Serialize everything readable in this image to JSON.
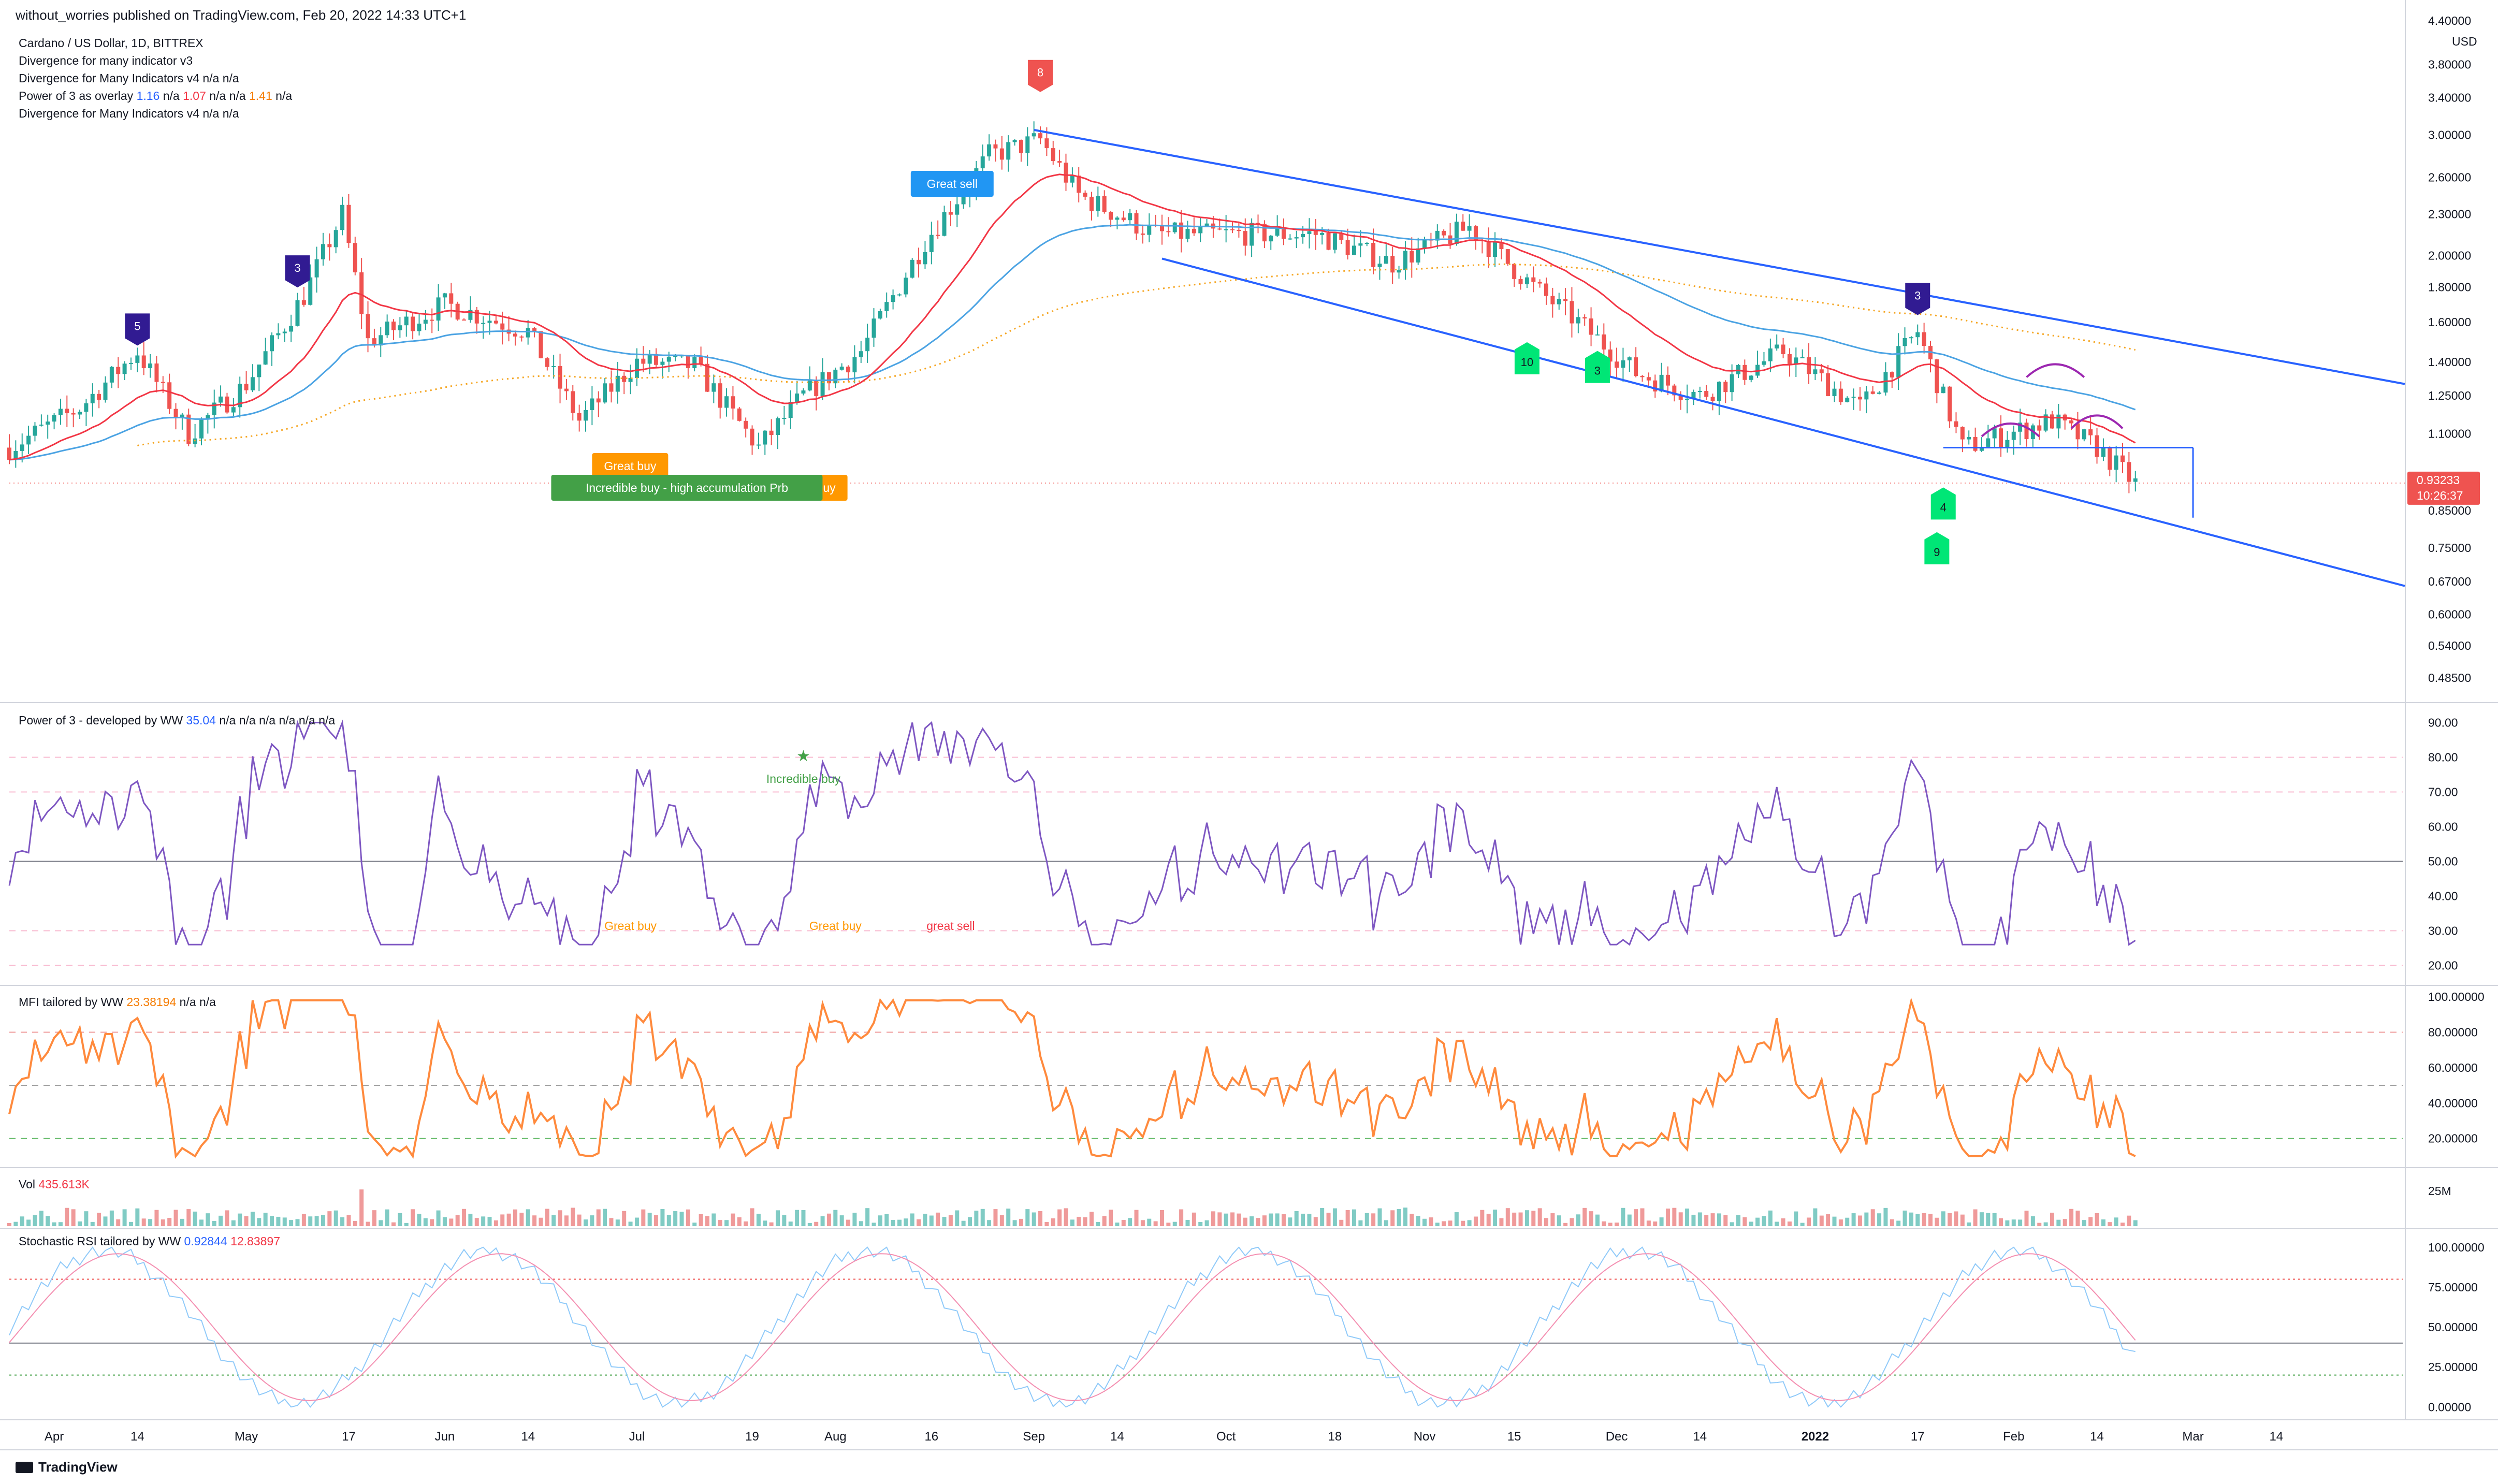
{
  "header": {
    "published": "without_worries published on TradingView.com, Feb 20, 2022 14:33 UTC+1"
  },
  "legends": {
    "main": [
      {
        "text": "Cardano / US Dollar, 1D, BITTREX"
      },
      {
        "text": "Divergence for many indicator v3"
      },
      {
        "text": "Divergence for Many Indicators v4  n/a  n/a"
      },
      {
        "text": "Power of 3 as overlay",
        "v1": "1.16",
        "na1": "n/a",
        "v2": "1.07",
        "na2": "n/a",
        "na3": "n/a",
        "v3": "1.41",
        "na4": "n/a"
      },
      {
        "text": "Divergence for Many Indicators v4  n/a  n/a"
      }
    ],
    "power3": {
      "text": "Power of 3 - developed by WW",
      "value": "35.04",
      "rest": "n/a  n/a  n/a  n/a  n/a  n/a"
    },
    "mfi": {
      "text": "MFI tailored by WW",
      "value": "23.38194",
      "rest": "n/a  n/a"
    },
    "vol": {
      "text": "Vol",
      "value": "435.613K"
    },
    "stoch": {
      "text": "Stochastic RSI tailored by WW",
      "v1": "0.92844",
      "v2": "12.83897"
    }
  },
  "colors": {
    "up": "#26a69a",
    "down": "#ef5350",
    "ema_fast": "#f23645",
    "ema_green": "#2e9e3e",
    "ema_slow": "#4ba3e3",
    "ma_dotted": "#f5a623",
    "channel": "#2962ff"
  },
  "price_axis": {
    "currency": "USD",
    "labels": [
      "4.40000",
      "3.80000",
      "3.40000",
      "3.00000",
      "2.60000",
      "2.30000",
      "2.00000",
      "1.80000",
      "1.60000",
      "1.40000",
      "1.25000",
      "1.10000",
      "0.85000",
      "0.75000",
      "0.67000",
      "0.60000",
      "0.54000",
      "0.48500"
    ],
    "last_price": "0.93233",
    "countdown": "10:26:37"
  },
  "x_axis": {
    "labels": [
      "Apr",
      "14",
      "May",
      "17",
      "Jun",
      "14",
      "Jul",
      "19",
      "Aug",
      "16",
      "Sep",
      "14",
      "Oct",
      "18",
      "Nov",
      "15",
      "Dec",
      "14",
      "2022",
      "17",
      "Feb",
      "14",
      "Mar",
      "14"
    ]
  },
  "power3_axis": [
    "90.00",
    "80.00",
    "70.00",
    "60.00",
    "50.00",
    "40.00",
    "30.00",
    "20.00"
  ],
  "mfi_axis": [
    "100.00000",
    "80.00000",
    "60.00000",
    "40.00000",
    "20.00000"
  ],
  "vol_axis": [
    "25M"
  ],
  "stoch_axis": [
    "100.00000",
    "75.00000",
    "50.00000",
    "25.00000",
    "0.00000"
  ],
  "markers": [
    {
      "text": "5"
    },
    {
      "text": "3"
    },
    {
      "text": "8"
    },
    {
      "text": "3"
    },
    {
      "text": "10"
    },
    {
      "text": "3"
    },
    {
      "text": "4"
    },
    {
      "text": "9"
    }
  ],
  "labels": {
    "great_sell": "Great sell",
    "great_buy_1": "Great buy",
    "great_buy_2": "Great buy",
    "incredible_buy_prb": "Incredible buy - high accumulation Prb",
    "incredible_buy": "Incredible buy",
    "p3_great_buy_1": "Great buy",
    "p3_great_buy_2": "Great buy",
    "p3_great_sell": "great sell"
  },
  "branding": {
    "logo": "TradingView"
  },
  "chart_data": {
    "type": "candlestick",
    "title": "Cardano / US Dollar, 1D, BITTREX",
    "x_range": [
      "2021-03-25",
      "2022-02-20"
    ],
    "price_scale": "log",
    "ylim": [
      0.45,
      4.4
    ],
    "series_close_approx": [
      {
        "date": "2021-03-25",
        "close": 1.05
      },
      {
        "date": "2021-04-05",
        "close": 1.2
      },
      {
        "date": "2021-04-14",
        "close": 1.45
      },
      {
        "date": "2021-04-22",
        "close": 1.1
      },
      {
        "date": "2021-05-01",
        "close": 1.3
      },
      {
        "date": "2021-05-10",
        "close": 1.75
      },
      {
        "date": "2021-05-16",
        "close": 2.3
      },
      {
        "date": "2021-05-20",
        "close": 1.5
      },
      {
        "date": "2021-06-01",
        "close": 1.7
      },
      {
        "date": "2021-06-14",
        "close": 1.55
      },
      {
        "date": "2021-06-22",
        "close": 1.15
      },
      {
        "date": "2021-07-01",
        "close": 1.4
      },
      {
        "date": "2021-07-10",
        "close": 1.38
      },
      {
        "date": "2021-07-20",
        "close": 1.05
      },
      {
        "date": "2021-07-27",
        "close": 1.25
      },
      {
        "date": "2021-08-05",
        "close": 1.45
      },
      {
        "date": "2021-08-15",
        "close": 2.1
      },
      {
        "date": "2021-08-25",
        "close": 2.8
      },
      {
        "date": "2021-09-02",
        "close": 2.95
      },
      {
        "date": "2021-09-08",
        "close": 2.45
      },
      {
        "date": "2021-09-20",
        "close": 2.15
      },
      {
        "date": "2021-10-01",
        "close": 2.15
      },
      {
        "date": "2021-10-15",
        "close": 2.15
      },
      {
        "date": "2021-10-27",
        "close": 1.95
      },
      {
        "date": "2021-11-08",
        "close": 2.2
      },
      {
        "date": "2021-11-18",
        "close": 1.8
      },
      {
        "date": "2021-11-25",
        "close": 1.6
      },
      {
        "date": "2021-12-04",
        "close": 1.35
      },
      {
        "date": "2021-12-14",
        "close": 1.25
      },
      {
        "date": "2021-12-27",
        "close": 1.45
      },
      {
        "date": "2022-01-08",
        "close": 1.2
      },
      {
        "date": "2022-01-17",
        "close": 1.55
      },
      {
        "date": "2022-01-24",
        "close": 1.05
      },
      {
        "date": "2022-02-07",
        "close": 1.15
      },
      {
        "date": "2022-02-14",
        "close": 1.05
      },
      {
        "date": "2022-02-20",
        "close": 0.93
      }
    ],
    "power3_range": [
      20,
      90
    ],
    "mfi_range": [
      0,
      100
    ],
    "stoch_range": [
      0,
      100
    ]
  }
}
